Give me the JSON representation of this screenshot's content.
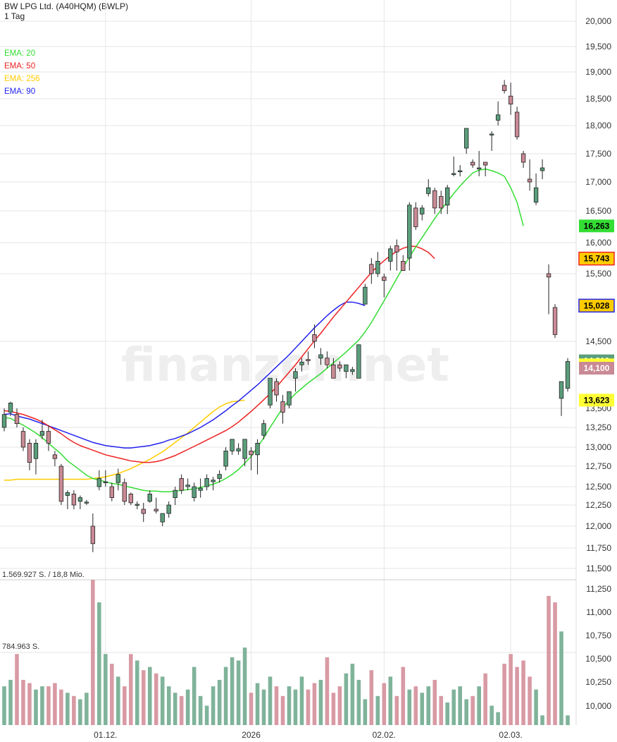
{
  "header": {
    "title": "BW LPG Ltd. (A40HQM) (BWLP)",
    "interval": "1 Tag"
  },
  "watermark": "finanzen.net",
  "legend": [
    {
      "label": "EMA: 20",
      "color": "#33dd33"
    },
    {
      "label": "EMA: 50",
      "color": "#ee2222"
    },
    {
      "label": "EMA: 256",
      "color": "#ffcc00"
    },
    {
      "label": "EMA: 90",
      "color": "#2222ee"
    }
  ],
  "volume_labels": {
    "max": "1.569.927 S. / 18,8 Mio.",
    "mid": "784.963 S."
  },
  "colors": {
    "up": "#5b9e7c",
    "down": "#c98a95",
    "vol_up": "#7fb39a",
    "vol_down": "#d89aa4",
    "grid": "#e6e6e6"
  },
  "chart_data": {
    "type": "candlestick",
    "price_axis": {
      "min": 11500,
      "max": 20000,
      "ticks": [
        "11,500",
        "11,750",
        "12,000",
        "12,250",
        "12,500",
        "12,750",
        "13,000",
        "13,250",
        "13,500",
        "14,500",
        "15,500",
        "16,000",
        "16,500",
        "17,000",
        "17,500",
        "18,000",
        "18,500",
        "19,000",
        "19,500",
        "20,000"
      ]
    },
    "volume_axis": {
      "ticks": [
        "10,000",
        "10,250",
        "10,500",
        "10,750",
        "11,000",
        "11,250"
      ]
    },
    "x_ticks": [
      {
        "label": "01.12.",
        "index": 16
      },
      {
        "label": "2026",
        "index": 39
      },
      {
        "label": "02.02.",
        "index": 60
      },
      {
        "label": "02.03.",
        "index": 80
      }
    ],
    "badges": [
      {
        "label": "16,263",
        "value": 16263,
        "bg": "#33dd33",
        "fg": "#000000"
      },
      {
        "label": "15,743",
        "value": 15743,
        "bg": "#ffcc00",
        "fg": "#000000",
        "border": "#ee2222"
      },
      {
        "label": "15,028",
        "value": 15028,
        "bg": "#ffcc00",
        "fg": "#000000",
        "border": "#2222ee"
      },
      {
        "label": "14,210",
        "value": 14210,
        "bg": "#5b9e7c",
        "fg": "#ffffff"
      },
      {
        "label": "14,150",
        "value": 14150,
        "bg": "#ffff33",
        "fg": "#000000"
      },
      {
        "label": "14,100",
        "value": 14100,
        "bg": "#c98a95",
        "fg": "#ffffff"
      },
      {
        "label": "13,623",
        "value": 13623,
        "bg": "#ffff33",
        "fg": "#000000"
      }
    ],
    "candles": [
      {
        "o": 13250,
        "h": 13500,
        "l": 13200,
        "c": 13420
      },
      {
        "o": 13450,
        "h": 13600,
        "l": 13400,
        "c": 13580
      },
      {
        "o": 13420,
        "h": 13500,
        "l": 13250,
        "c": 13300
      },
      {
        "o": 13200,
        "h": 13250,
        "l": 12950,
        "c": 13000
      },
      {
        "o": 13050,
        "h": 13100,
        "l": 12700,
        "c": 12800
      },
      {
        "o": 12850,
        "h": 13100,
        "l": 12650,
        "c": 13050
      },
      {
        "o": 13150,
        "h": 13350,
        "l": 13100,
        "c": 13200
      },
      {
        "o": 13200,
        "h": 13280,
        "l": 12950,
        "c": 13050
      },
      {
        "o": 12900,
        "h": 12950,
        "l": 12750,
        "c": 12850
      },
      {
        "o": 12750,
        "h": 12780,
        "l": 12250,
        "c": 12300
      },
      {
        "o": 12380,
        "h": 12450,
        "l": 12200,
        "c": 12420
      },
      {
        "o": 12400,
        "h": 12450,
        "l": 12200,
        "c": 12250
      },
      {
        "o": 12300,
        "h": 12380,
        "l": 12200,
        "c": 12350
      },
      {
        "o": 12280,
        "h": 12320,
        "l": 12250,
        "c": 12290
      },
      {
        "o": 12000,
        "h": 12150,
        "l": 11700,
        "c": 11800
      },
      {
        "o": 12500,
        "h": 12700,
        "l": 12450,
        "c": 12600
      },
      {
        "o": 12550,
        "h": 12700,
        "l": 12500,
        "c": 12560
      },
      {
        "o": 12500,
        "h": 12550,
        "l": 12300,
        "c": 12350
      },
      {
        "o": 12550,
        "h": 12720,
        "l": 12450,
        "c": 12650
      },
      {
        "o": 12550,
        "h": 12600,
        "l": 12250,
        "c": 12300
      },
      {
        "o": 12400,
        "h": 12420,
        "l": 12250,
        "c": 12280
      },
      {
        "o": 12250,
        "h": 12300,
        "l": 12200,
        "c": 12260
      },
      {
        "o": 12200,
        "h": 12280,
        "l": 12050,
        "c": 12150
      },
      {
        "o": 12300,
        "h": 12450,
        "l": 12280,
        "c": 12400
      },
      {
        "o": 12200,
        "h": 12350,
        "l": 12150,
        "c": 12180
      },
      {
        "o": 12050,
        "h": 12150,
        "l": 12000,
        "c": 12150
      },
      {
        "o": 12150,
        "h": 12300,
        "l": 12100,
        "c": 12250
      },
      {
        "o": 12350,
        "h": 12500,
        "l": 12250,
        "c": 12450
      },
      {
        "o": 12600,
        "h": 12650,
        "l": 12400,
        "c": 12450
      },
      {
        "o": 12500,
        "h": 12600,
        "l": 12450,
        "c": 12520
      },
      {
        "o": 12350,
        "h": 12550,
        "l": 12300,
        "c": 12500
      },
      {
        "o": 12450,
        "h": 12600,
        "l": 12350,
        "c": 12480
      },
      {
        "o": 12500,
        "h": 12650,
        "l": 12450,
        "c": 12600
      },
      {
        "o": 12560,
        "h": 12620,
        "l": 12450,
        "c": 12580
      },
      {
        "o": 12600,
        "h": 12700,
        "l": 12550,
        "c": 12650
      },
      {
        "o": 12750,
        "h": 13000,
        "l": 12700,
        "c": 12950
      },
      {
        "o": 12950,
        "h": 13100,
        "l": 12900,
        "c": 13100
      },
      {
        "o": 12950,
        "h": 13050,
        "l": 12900,
        "c": 12980
      },
      {
        "o": 12850,
        "h": 13100,
        "l": 12750,
        "c": 13100
      },
      {
        "o": 12950,
        "h": 13000,
        "l": 12700,
        "c": 12900
      },
      {
        "o": 12900,
        "h": 13100,
        "l": 12650,
        "c": 13050
      },
      {
        "o": 13150,
        "h": 13350,
        "l": 13100,
        "c": 13300
      },
      {
        "o": 13550,
        "h": 13950,
        "l": 13500,
        "c": 13950
      },
      {
        "o": 13900,
        "h": 13950,
        "l": 13600,
        "c": 13700
      },
      {
        "o": 13600,
        "h": 13700,
        "l": 13300,
        "c": 13450
      },
      {
        "o": 13550,
        "h": 13750,
        "l": 13500,
        "c": 13750
      },
      {
        "o": 13950,
        "h": 14100,
        "l": 13750,
        "c": 14050
      },
      {
        "o": 14150,
        "h": 14250,
        "l": 14050,
        "c": 14190
      },
      {
        "o": 14230,
        "h": 14350,
        "l": 14150,
        "c": 14210
      },
      {
        "o": 14600,
        "h": 14750,
        "l": 14400,
        "c": 14500
      },
      {
        "o": 14250,
        "h": 14400,
        "l": 14150,
        "c": 14300
      },
      {
        "o": 14250,
        "h": 14350,
        "l": 14100,
        "c": 14150
      },
      {
        "o": 14150,
        "h": 14250,
        "l": 13950,
        "c": 13950
      },
      {
        "o": 14150,
        "h": 14200,
        "l": 14050,
        "c": 14100
      },
      {
        "o": 14050,
        "h": 14150,
        "l": 13950,
        "c": 14150
      },
      {
        "o": 14050,
        "h": 14120,
        "l": 14000,
        "c": 14080
      },
      {
        "o": 13950,
        "h": 14400,
        "l": 13950,
        "c": 14450
      },
      {
        "o": 15050,
        "h": 15350,
        "l": 15050,
        "c": 15300
      },
      {
        "o": 15650,
        "h": 15750,
        "l": 15350,
        "c": 15500
      },
      {
        "o": 15500,
        "h": 15850,
        "l": 15450,
        "c": 15700
      },
      {
        "o": 15450,
        "h": 15500,
        "l": 15150,
        "c": 15400
      },
      {
        "o": 15700,
        "h": 15950,
        "l": 15550,
        "c": 15900
      },
      {
        "o": 15950,
        "h": 16050,
        "l": 15550,
        "c": 15850
      },
      {
        "o": 15700,
        "h": 15800,
        "l": 15550,
        "c": 15550
      },
      {
        "o": 15750,
        "h": 16650,
        "l": 15550,
        "c": 16600
      },
      {
        "o": 16550,
        "h": 16650,
        "l": 16200,
        "c": 16250
      },
      {
        "o": 16450,
        "h": 16600,
        "l": 16350,
        "c": 16550
      },
      {
        "o": 16800,
        "h": 17050,
        "l": 16750,
        "c": 16900
      },
      {
        "o": 16850,
        "h": 16900,
        "l": 16450,
        "c": 16550
      },
      {
        "o": 16750,
        "h": 16850,
        "l": 16450,
        "c": 16550
      },
      {
        "o": 16600,
        "h": 16950,
        "l": 16450,
        "c": 16900
      },
      {
        "o": 17150,
        "h": 17450,
        "l": 17100,
        "c": 17150
      },
      {
        "o": 17180,
        "h": 17300,
        "l": 17100,
        "c": 17200
      },
      {
        "o": 17600,
        "h": 17900,
        "l": 17500,
        "c": 17950
      },
      {
        "o": 17350,
        "h": 17400,
        "l": 17250,
        "c": 17300
      },
      {
        "o": 17250,
        "h": 17550,
        "l": 17100,
        "c": 17250
      },
      {
        "o": 17350,
        "h": 17350,
        "l": 17100,
        "c": 17300
      },
      {
        "o": 17850,
        "h": 17900,
        "l": 17550,
        "c": 17850
      },
      {
        "o": 18100,
        "h": 18450,
        "l": 18000,
        "c": 18200
      },
      {
        "o": 18750,
        "h": 18850,
        "l": 18600,
        "c": 18650
      },
      {
        "o": 18550,
        "h": 18800,
        "l": 18200,
        "c": 18400
      },
      {
        "o": 18250,
        "h": 18350,
        "l": 17750,
        "c": 17800
      },
      {
        "o": 17500,
        "h": 17550,
        "l": 17250,
        "c": 17350
      },
      {
        "o": 17050,
        "h": 17400,
        "l": 16850,
        "c": 17000
      },
      {
        "o": 16650,
        "h": 17150,
        "l": 16600,
        "c": 16900
      },
      {
        "o": 17200,
        "h": 17400,
        "l": 17050,
        "c": 17250
      },
      {
        "o": 15500,
        "h": 15650,
        "l": 14900,
        "c": 15450
      },
      {
        "o": 15000,
        "h": 15050,
        "l": 14550,
        "c": 14600
      },
      {
        "o": 13650,
        "h": 13850,
        "l": 13400,
        "c": 13900
      },
      {
        "o": 13800,
        "h": 14250,
        "l": 13750,
        "c": 14200
      }
    ],
    "volume_pct": [
      10,
      10,
      10,
      10,
      10,
      10,
      10,
      10,
      10,
      10,
      10,
      10,
      10,
      10,
      10,
      10,
      10,
      10,
      10,
      10,
      10,
      10,
      10,
      10,
      10,
      10,
      10,
      10,
      10,
      10,
      10,
      10,
      10,
      10,
      10,
      10,
      10,
      10,
      10,
      10,
      10,
      10,
      10,
      10,
      10,
      10,
      10,
      10,
      10,
      10,
      10,
      10,
      10,
      10,
      10,
      10,
      10,
      10,
      10,
      10,
      10,
      10,
      10,
      10,
      10,
      10,
      10,
      10,
      10,
      10,
      10,
      10,
      10,
      10,
      10,
      10,
      10,
      10,
      10,
      10,
      10,
      10,
      10,
      10,
      10,
      10,
      10,
      10,
      10,
      10
    ],
    "ema20": [
      13380,
      13370,
      13320,
      13280,
      13230,
      13180,
      13120,
      13050,
      12980,
      12910,
      12820,
      12760,
      12700,
      12640,
      12600,
      12580,
      12560,
      12540,
      12530,
      12510,
      12490,
      12470,
      12450,
      12440,
      12440,
      12430,
      12430,
      12440,
      12450,
      12460,
      12470,
      12490,
      12510,
      12530,
      12560,
      12600,
      12650,
      12710,
      12790,
      12880,
      13000,
      13120,
      13250,
      13380,
      13510,
      13620,
      13720,
      13800,
      13880,
      13950,
      14020,
      14100,
      14180,
      14260,
      14340,
      14430,
      14520,
      14640,
      14780,
      14940,
      15100,
      15260,
      15430,
      15600,
      15770,
      15930,
      16080,
      16230,
      16380,
      16520,
      16660,
      16800,
      16930,
      17050,
      17160,
      17210,
      17230,
      17200,
      17160,
      17100,
      16900,
      16650,
      16263
    ],
    "ema50": [
      13470,
      13460,
      13440,
      13420,
      13390,
      13360,
      13320,
      13270,
      13220,
      13170,
      13110,
      13060,
      13020,
      12990,
      12960,
      12930,
      12900,
      12880,
      12860,
      12840,
      12820,
      12810,
      12800,
      12800,
      12810,
      12830,
      12860,
      12890,
      12930,
      12970,
      13010,
      13050,
      13090,
      13130,
      13170,
      13210,
      13260,
      13320,
      13390,
      13460,
      13540,
      13630,
      13720,
      13820,
      13930,
      14040,
      14150,
      14270,
      14390,
      14510,
      14620,
      14740,
      14860,
      14970,
      15080,
      15190,
      15300,
      15410,
      15520,
      15620,
      15710,
      15790,
      15860,
      15910,
      15940,
      15940,
      15900,
      15843,
      15743
    ],
    "ema90": [
      13420,
      13430,
      13400,
      13380,
      13360,
      13330,
      13300,
      13270,
      13240,
      13210,
      13180,
      13150,
      13120,
      13090,
      13060,
      13040,
      13020,
      13010,
      13000,
      12990,
      12990,
      13000,
      13010,
      13020,
      13040,
      13060,
      13090,
      13110,
      13140,
      13170,
      13210,
      13250,
      13300,
      13350,
      13410,
      13470,
      13540,
      13610,
      13690,
      13770,
      13850,
      13940,
      14030,
      14120,
      14210,
      14300,
      14400,
      14500,
      14600,
      14700,
      14790,
      14880,
      14960,
      15030,
      15080,
      15080,
      15060,
      15028
    ],
    "ema256": [
      12580,
      12580,
      12590,
      12590,
      12590,
      12590,
      12590,
      12590,
      12590,
      12590,
      12590,
      12590,
      12590,
      12590,
      12600,
      12610,
      12620,
      12640,
      12660,
      12690,
      12720,
      12760,
      12800,
      12840,
      12890,
      12940,
      13000,
      13060,
      13120,
      13180,
      13250,
      13320,
      13390,
      13460,
      13520,
      13570,
      13600,
      13610,
      13623
    ]
  }
}
